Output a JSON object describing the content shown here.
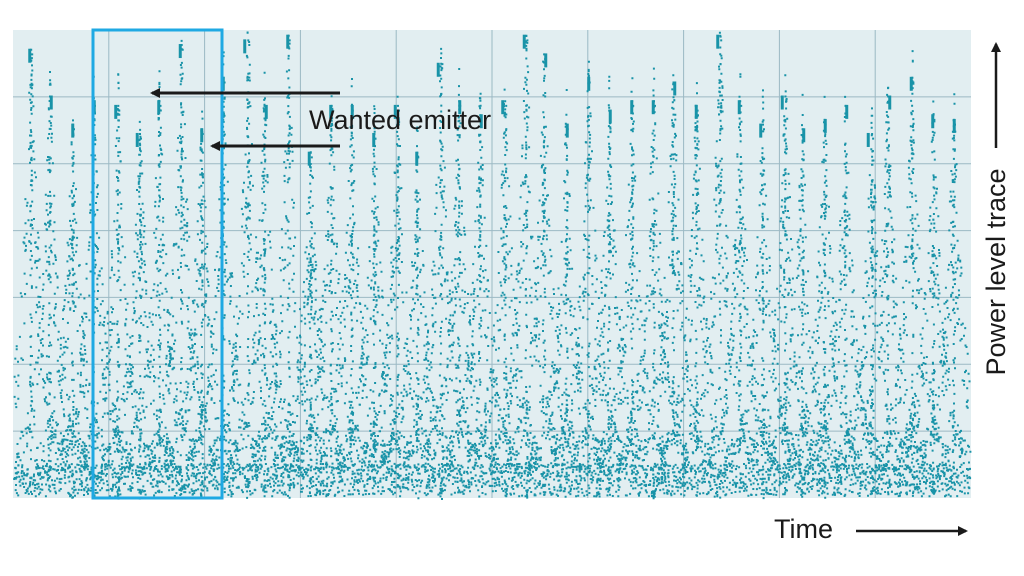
{
  "chart_data": {
    "type": "scatter",
    "title": "",
    "xlabel": "Time",
    "ylabel": "Power level trace",
    "annotation": "Wanted emitter",
    "grid": true,
    "colors": {
      "trace": "#1993a8",
      "plot_background": "#e2eef1",
      "grid": "#9bb9c4",
      "highlight": "#1fa9e3",
      "arrow": "#1a1a1a"
    },
    "series": [
      {
        "values": [
          0.96,
          0.86,
          0.8,
          0.85,
          0.84,
          0.78,
          0.85,
          0.97,
          0.79,
          0.9,
          0.98,
          0.84,
          0.99,
          0.74,
          0.84,
          0.84,
          0.78,
          0.84,
          0.74,
          0.93,
          0.85,
          0.82,
          0.85,
          0.99,
          0.95,
          0.8,
          0.9,
          0.83,
          0.85,
          0.85,
          0.89,
          0.84,
          0.99,
          0.85,
          0.8,
          0.86,
          0.79,
          0.81,
          0.84,
          0.78,
          0.86,
          0.9,
          0.82,
          0.81
        ]
      }
    ]
  }
}
